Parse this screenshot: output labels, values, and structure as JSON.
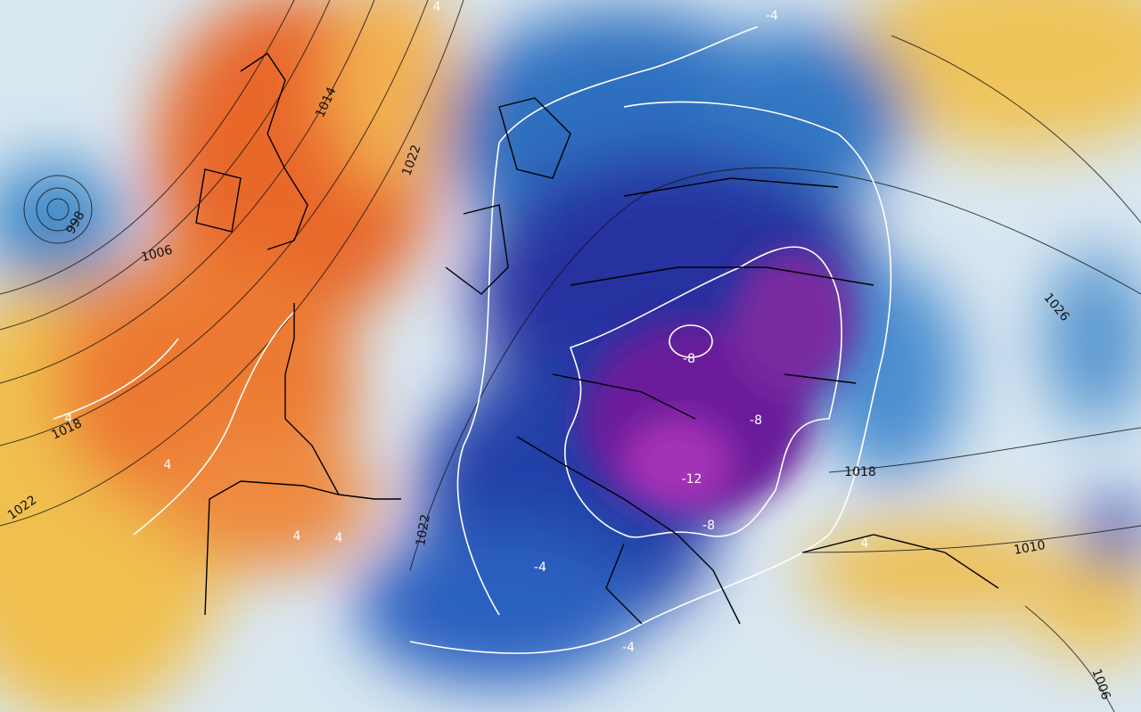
{
  "isobar_labels": [
    "998",
    "1006",
    "1014",
    "1022",
    "1018",
    "1022",
    "1022",
    "1018",
    "1026",
    "1010",
    "1006"
  ],
  "isotherm_labels": [
    "4",
    "-4",
    "-8",
    "-8",
    "-12",
    "-8",
    "4",
    "4",
    "4",
    "4",
    "4",
    "-4",
    "-4"
  ]
}
